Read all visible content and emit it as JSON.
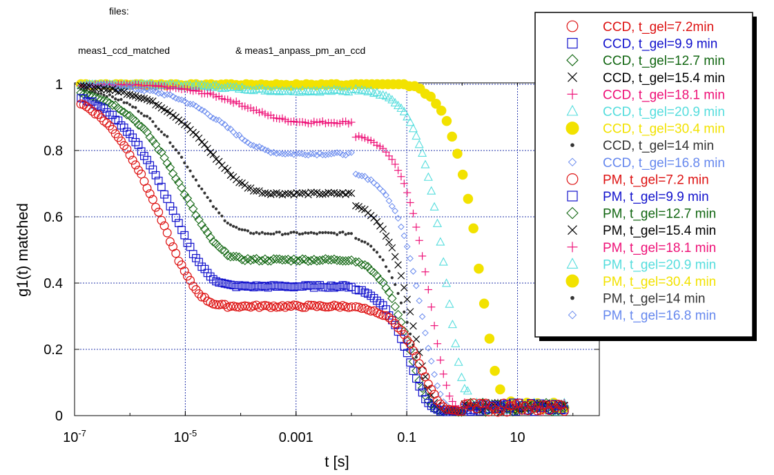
{
  "notes": {
    "files": "files:",
    "file_a": "meas1_ccd_matched",
    "file_b": "& meas1_anpass_pm_an_ccd"
  },
  "chart_data": {
    "type": "scatter",
    "title": "",
    "xlabel": "t [s]",
    "ylabel": "g1(t) matched",
    "x_scale": "log",
    "xlim": [
      1e-07,
      300
    ],
    "ylim": [
      0,
      1.05
    ],
    "grid": true,
    "legend_position": "top-right",
    "x_ticks": [
      {
        "value": 1e-07,
        "label": "10",
        "exp": "-7"
      },
      {
        "value": 1e-05,
        "label": "10",
        "exp": "-5"
      },
      {
        "value": 0.001,
        "label": "0.001",
        "exp": ""
      },
      {
        "value": 0.1,
        "label": "0.1",
        "exp": ""
      },
      {
        "value": 10,
        "label": "10",
        "exp": ""
      }
    ],
    "y_ticks": [
      {
        "value": 0,
        "label": "0"
      },
      {
        "value": 0.2,
        "label": "0.2"
      },
      {
        "value": 0.4,
        "label": "0.4"
      },
      {
        "value": 0.6,
        "label": "0.6"
      },
      {
        "value": 0.8,
        "label": "0.8"
      },
      {
        "value": 1,
        "label": "1"
      }
    ],
    "series": [
      {
        "name": "CCD,  t_gel=7.2min",
        "marker": "circle-open",
        "color": "#dd1111",
        "group": "CCD",
        "plateau": 0.33,
        "tau_ccd": 4e-06
      },
      {
        "name": "CCD, t_gel=9.9  min",
        "marker": "square-open",
        "color": "#1111cc",
        "group": "CCD",
        "plateau": 0.39,
        "tau_ccd": 6e-06
      },
      {
        "name": "CCD, t_gel=12.7 min",
        "marker": "diamond-open",
        "color": "#116611",
        "group": "CCD",
        "plateau": 0.47,
        "tau_ccd": 1e-05
      },
      {
        "name": "CCD, t_gel=15.4  min",
        "marker": "cross",
        "color": "#000000",
        "group": "CCD",
        "plateau": 0.67,
        "tau_ccd": 3e-05
      },
      {
        "name": "CCD, t_gel=18.1  min",
        "marker": "plus",
        "color": "#ee1177",
        "group": "CCD",
        "plateau": 0.885,
        "tau_ccd": 0.00015
      },
      {
        "name": "CCD, t_gel=20.9  min",
        "marker": "triangle-open",
        "color": "#55dddd",
        "group": "CCD",
        "plateau": 0.98,
        "tau_ccd": 0.0001
      },
      {
        "name": "CCD, t_gel=30.4  min",
        "marker": "circle-filled",
        "color": "#f2e200",
        "group": "CCD",
        "plateau": 0.999,
        "tau_ccd": 0.0001
      },
      {
        "name": "CCD, t_gel=14 min",
        "marker": "dot",
        "color": "#333333",
        "group": "CCD",
        "plateau": 0.55,
        "tau_ccd": 1.5e-05
      },
      {
        "name": "CCD, t_gel=16.8  min",
        "marker": "diamond-small",
        "color": "#6688ee",
        "group": "CCD",
        "plateau": 0.79,
        "tau_ccd": 6e-05
      },
      {
        "name": "PM,  t_gel=7.2  min",
        "marker": "circle-open",
        "color": "#dd1111",
        "group": "PM",
        "start": 0.32,
        "tau_pm": 0.2
      },
      {
        "name": "PM, t_gel=9.9  min",
        "marker": "square-open",
        "color": "#1111cc",
        "group": "PM",
        "start": 0.385,
        "tau_pm": 0.12
      },
      {
        "name": "PM, t_gel=12.7  min",
        "marker": "diamond-open",
        "color": "#116611",
        "group": "PM",
        "start": 0.47,
        "tau_pm": 0.12
      },
      {
        "name": "PM, t_gel=15.4  min",
        "marker": "cross",
        "color": "#000000",
        "group": "PM",
        "start": 0.64,
        "tau_pm": 0.14
      },
      {
        "name": "PM, t_gel=18.1  min",
        "marker": "plus",
        "color": "#ee1177",
        "group": "PM",
        "start": 0.84,
        "tau_pm": 0.28
      },
      {
        "name": "PM, t_gel=20.9  min",
        "marker": "triangle-open",
        "color": "#55dddd",
        "group": "PM",
        "start": 0.975,
        "tau_pm": 0.55
      },
      {
        "name": "PM, t_gel=30.4  min",
        "marker": "circle-filled",
        "color": "#f2e200",
        "group": "PM",
        "start": 0.999,
        "tau_pm": 2.2
      },
      {
        "name": "PM, t_gel=14 min",
        "marker": "dot",
        "color": "#333333",
        "group": "PM",
        "start": 0.54,
        "tau_pm": 0.13
      },
      {
        "name": "PM, t_gel=16.8  min",
        "marker": "diamond-small",
        "color": "#6688ee",
        "group": "PM",
        "start": 0.73,
        "tau_pm": 0.2
      }
    ]
  }
}
